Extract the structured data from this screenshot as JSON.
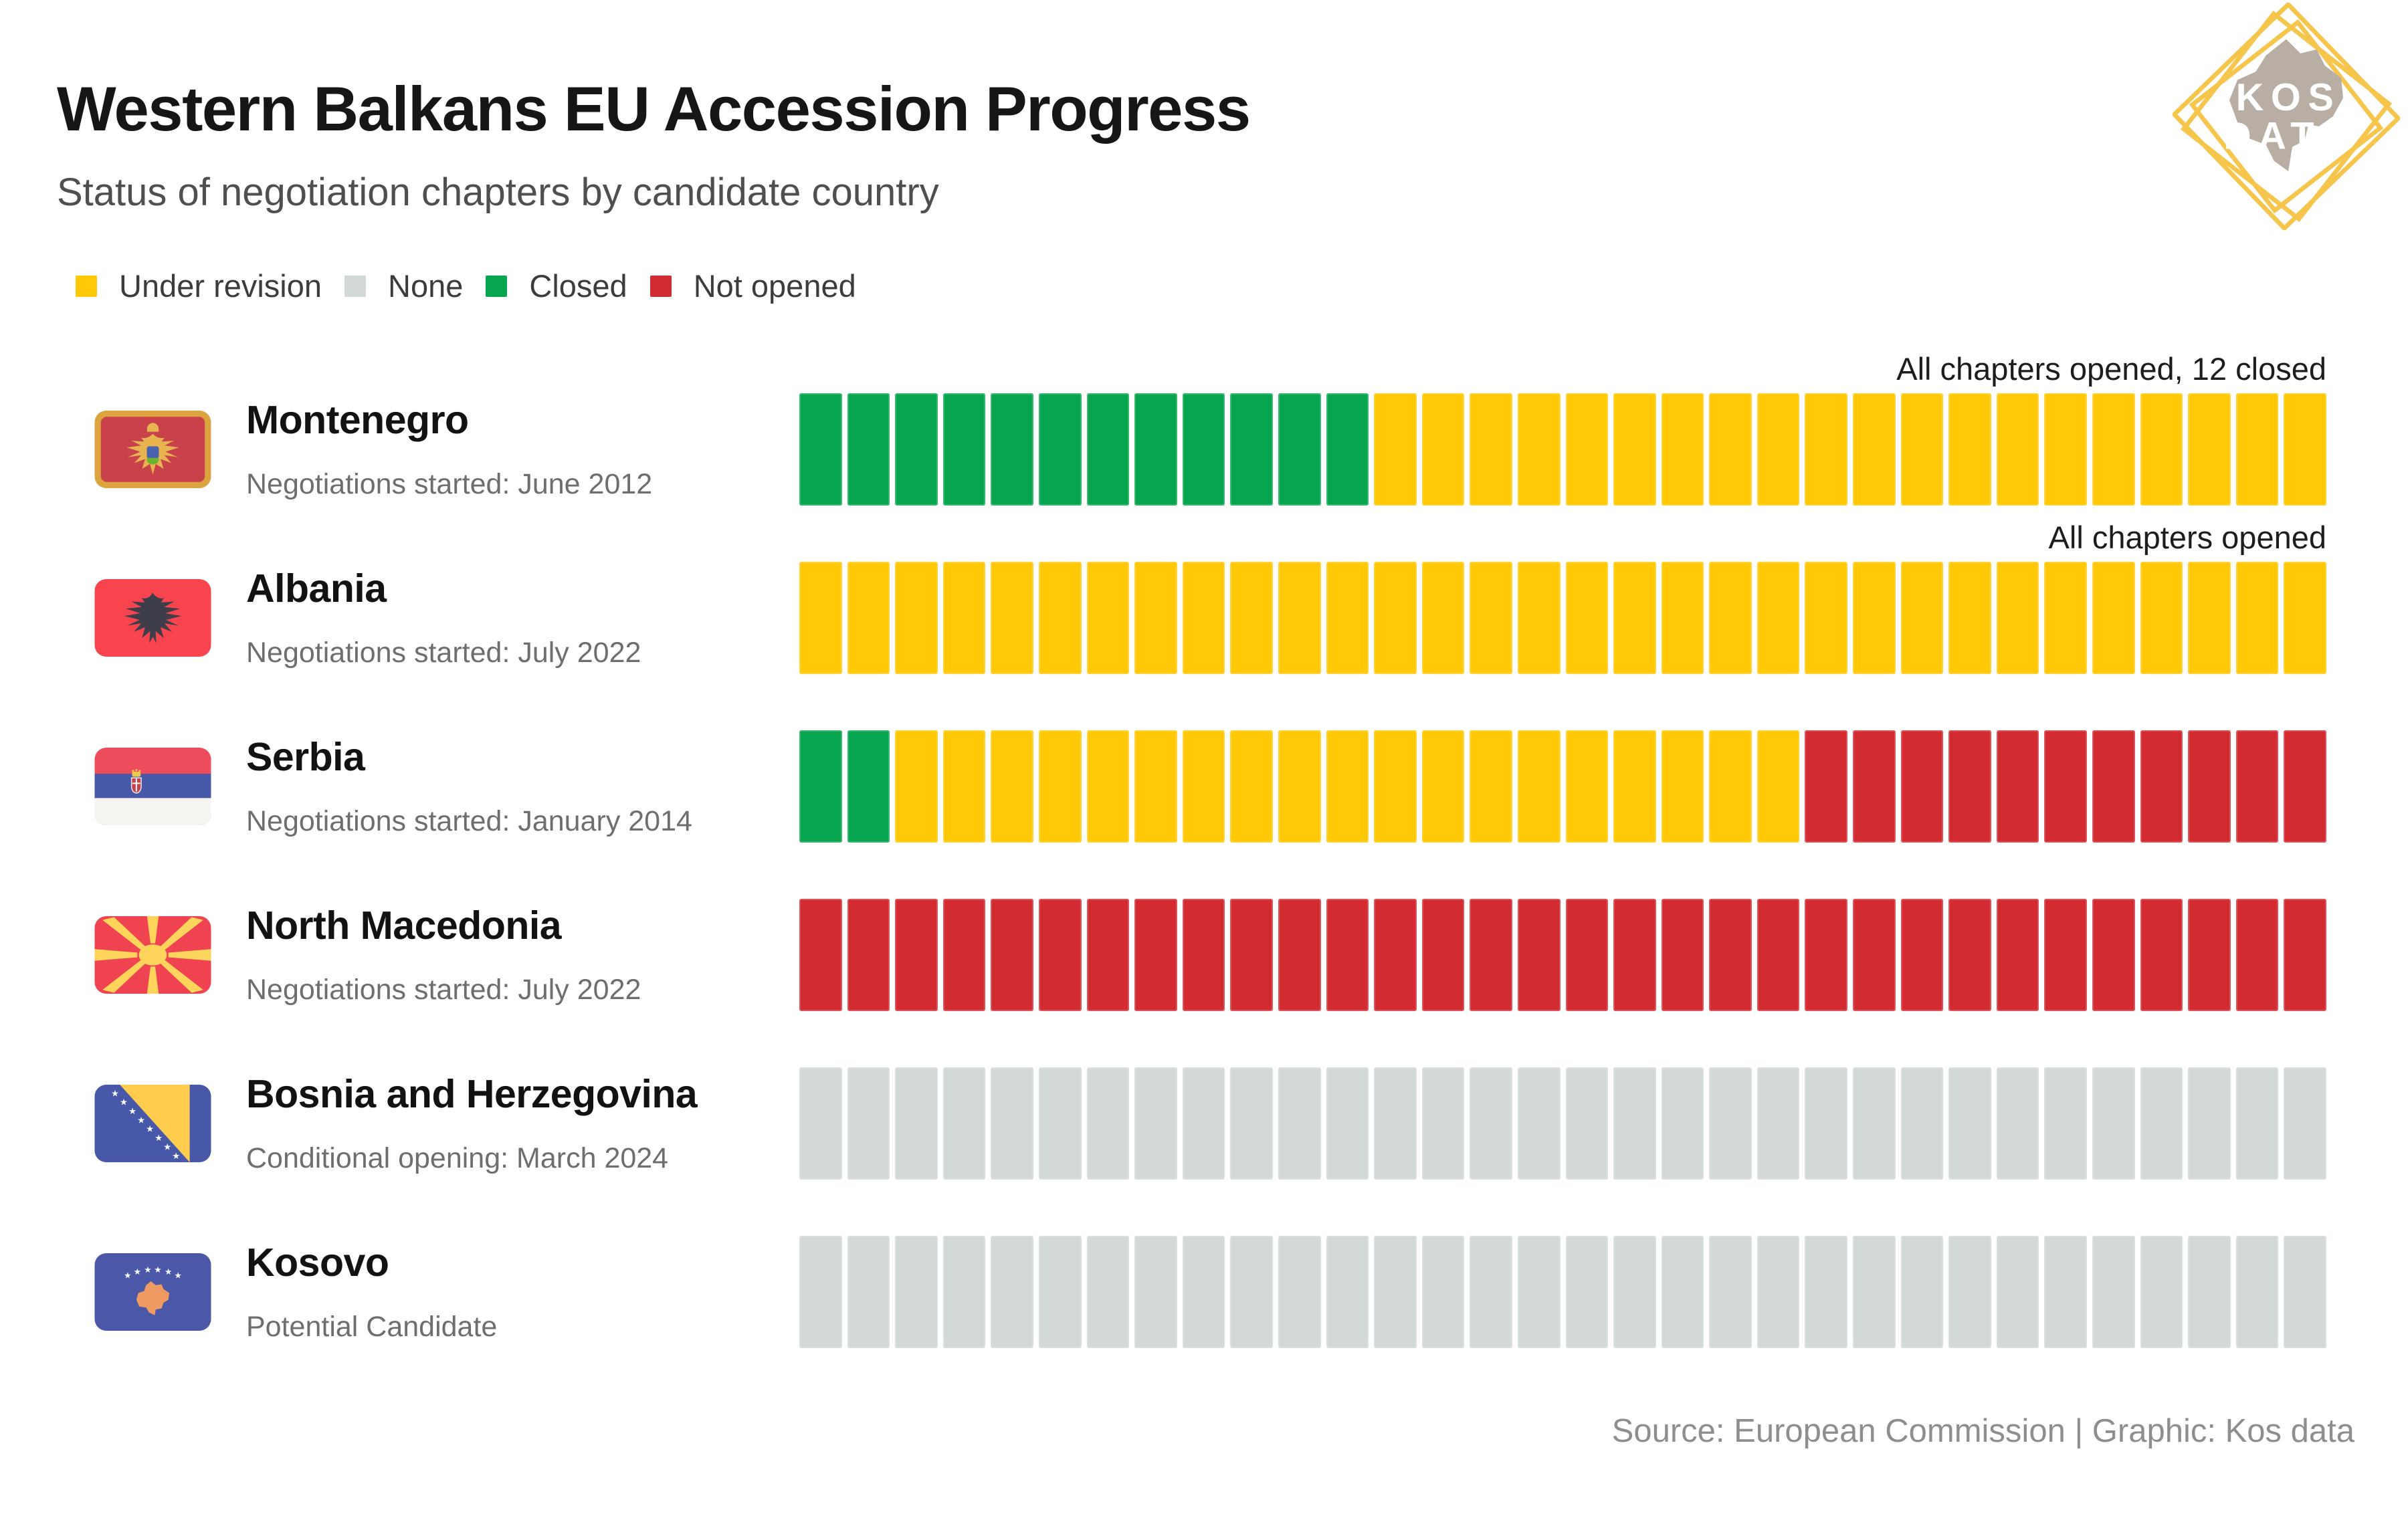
{
  "header": {
    "title": "Western Balkans EU Accession Progress",
    "subtitle": "Status of negotiation chapters by candidate country"
  },
  "logo": {
    "line1": "KOS",
    "line2": "DATA"
  },
  "colors": {
    "under_revision": "#FFC907",
    "none": "#D3D8D8",
    "closed": "#08A551",
    "not_opened": "#D22B32"
  },
  "legend": {
    "items": [
      {
        "id": "under_revision",
        "label": "Under revision"
      },
      {
        "id": "none",
        "label": "None"
      },
      {
        "id": "closed",
        "label": "Closed"
      },
      {
        "id": "not_opened",
        "label": "Not opened"
      }
    ]
  },
  "rows": [
    {
      "id": "montenegro",
      "flag": "me",
      "name": "Montenegro",
      "note": "Negotiations started: June 2012",
      "annotation": "All chapters opened, 12 closed",
      "segments": [
        [
          "closed",
          12
        ],
        [
          "under_revision",
          20
        ]
      ]
    },
    {
      "id": "albania",
      "flag": "al",
      "name": "Albania",
      "note": "Negotiations started: July 2022",
      "annotation": "All chapters opened",
      "segments": [
        [
          "under_revision",
          32
        ]
      ]
    },
    {
      "id": "serbia",
      "flag": "rs",
      "name": "Serbia",
      "note": "Negotiations started: January 2014",
      "annotation": null,
      "segments": [
        [
          "closed",
          2
        ],
        [
          "under_revision",
          19
        ],
        [
          "not_opened",
          11
        ]
      ]
    },
    {
      "id": "north-macedonia",
      "flag": "mk",
      "name": "North Macedonia",
      "note": "Negotiations started: July 2022",
      "annotation": null,
      "segments": [
        [
          "not_opened",
          32
        ]
      ]
    },
    {
      "id": "bosnia-and-herzegovina",
      "flag": "ba",
      "name": "Bosnia and Herzegovina",
      "note": "Conditional opening: March 2024",
      "annotation": null,
      "segments": [
        [
          "none",
          32
        ]
      ]
    },
    {
      "id": "kosovo",
      "flag": "xk",
      "name": "Kosovo",
      "note": "Potential Candidate",
      "annotation": null,
      "segments": [
        [
          "none",
          32
        ]
      ]
    }
  ],
  "footer": {
    "source": "Source: European Commission | Graphic: Kos data"
  },
  "chart_data": {
    "type": "heatmap",
    "title": "Western Balkans EU Accession Progress",
    "subtitle": "Status of negotiation chapters by candidate country",
    "unit": "EU negotiation chapters",
    "chapters_per_country": 32,
    "legend": [
      "Under revision",
      "None",
      "Closed",
      "Not opened"
    ],
    "legend_position": "top-left",
    "statuses_order_in_bar": [
      "closed",
      "under_revision",
      "not_opened",
      "none"
    ],
    "categories": [
      "Montenegro",
      "Albania",
      "Serbia",
      "North Macedonia",
      "Bosnia and Herzegovina",
      "Kosovo"
    ],
    "series": [
      {
        "name": "Montenegro",
        "status_note": "Negotiations started: June 2012",
        "closed": 12,
        "under_revision": 20,
        "not_opened": 0,
        "none": 0,
        "annotation": "All chapters opened, 12 closed"
      },
      {
        "name": "Albania",
        "status_note": "Negotiations started: July 2022",
        "closed": 0,
        "under_revision": 32,
        "not_opened": 0,
        "none": 0,
        "annotation": "All chapters opened"
      },
      {
        "name": "Serbia",
        "status_note": "Negotiations started: January 2014",
        "closed": 2,
        "under_revision": 19,
        "not_opened": 11,
        "none": 0
      },
      {
        "name": "North Macedonia",
        "status_note": "Negotiations started: July 2022",
        "closed": 0,
        "under_revision": 0,
        "not_opened": 32,
        "none": 0
      },
      {
        "name": "Bosnia and Herzegovina",
        "status_note": "Conditional opening: March 2024",
        "closed": 0,
        "under_revision": 0,
        "not_opened": 0,
        "none": 32
      },
      {
        "name": "Kosovo",
        "status_note": "Potential Candidate",
        "closed": 0,
        "under_revision": 0,
        "not_opened": 0,
        "none": 32
      }
    ],
    "source": "Source: European Commission | Graphic: Kos data"
  }
}
